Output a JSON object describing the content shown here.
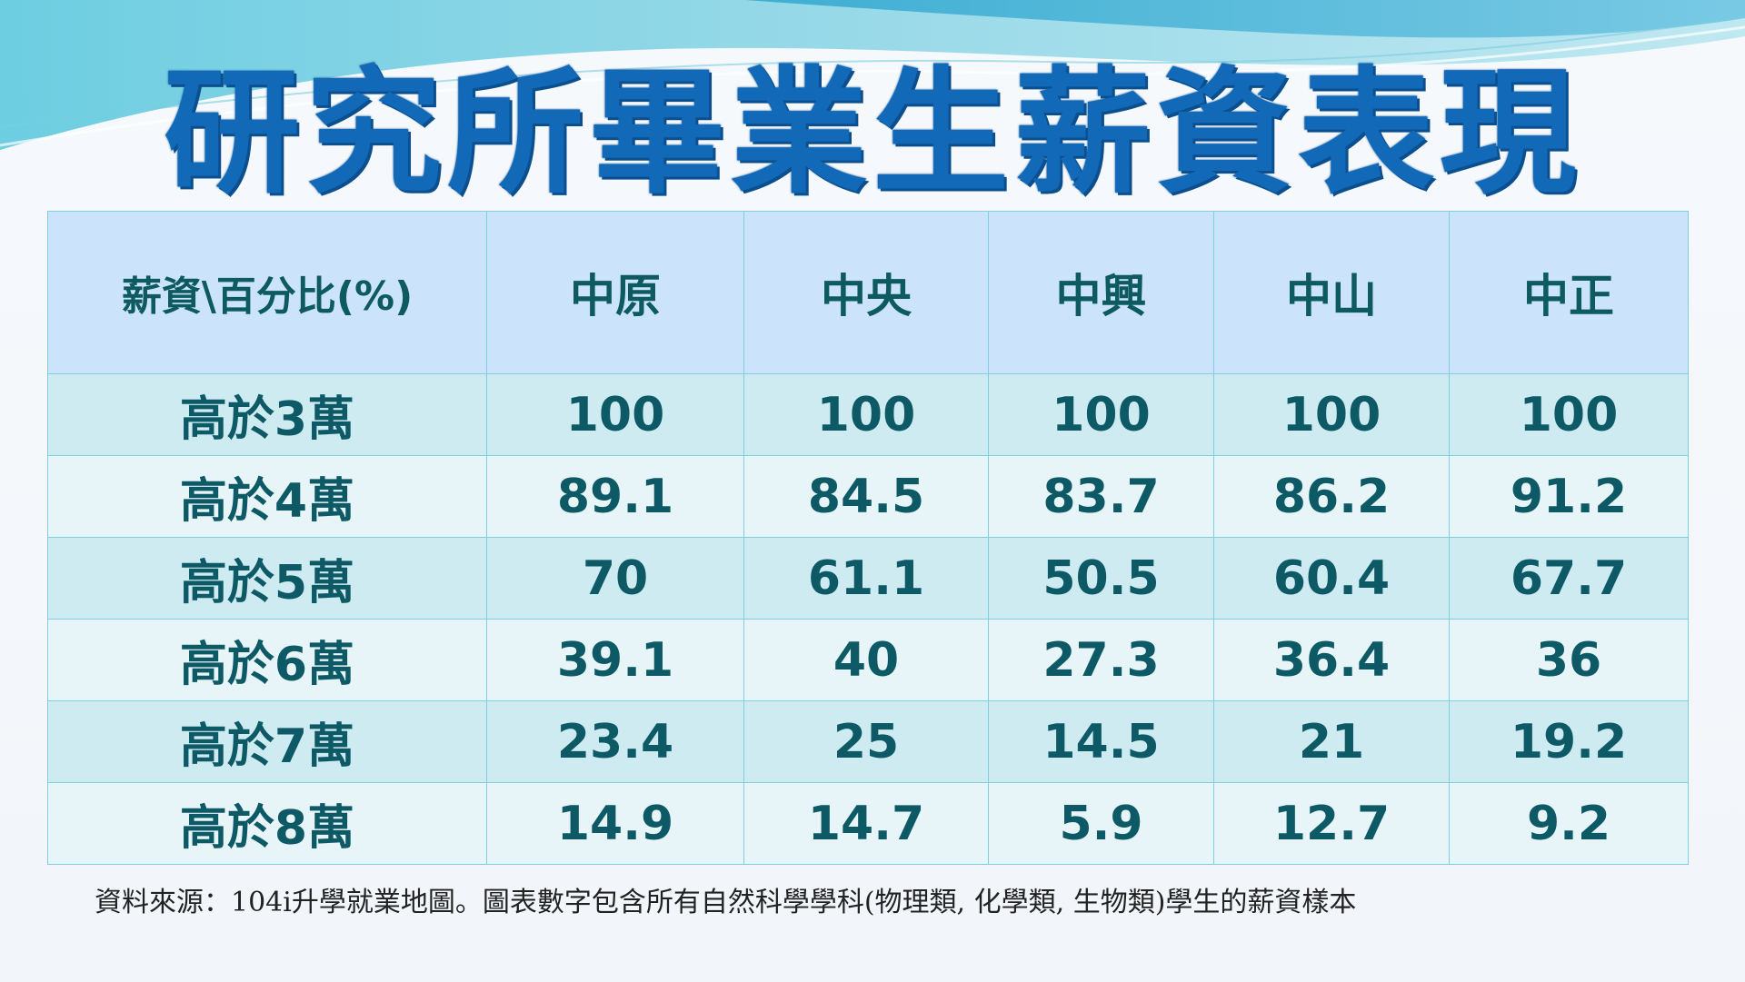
{
  "title": "研究所畢業生薪資表現",
  "table": {
    "corner_header": "薪資\\百分比(%)",
    "columns": [
      "中原",
      "中央",
      "中興",
      "中山",
      "中正"
    ],
    "rows": [
      {
        "label": "高於3萬",
        "values": [
          "100",
          "100",
          "100",
          "100",
          "100"
        ]
      },
      {
        "label": "高於4萬",
        "values": [
          "89.1",
          "84.5",
          "83.7",
          "86.2",
          "91.2"
        ]
      },
      {
        "label": "高於5萬",
        "values": [
          "70",
          "61.1",
          "50.5",
          "60.4",
          "67.7"
        ]
      },
      {
        "label": "高於6萬",
        "values": [
          "39.1",
          "40",
          "27.3",
          "36.4",
          "36"
        ]
      },
      {
        "label": "高於7萬",
        "values": [
          "23.4",
          "25",
          "14.5",
          "21",
          "19.2"
        ]
      },
      {
        "label": "高於8萬",
        "values": [
          "14.9",
          "14.7",
          "5.9",
          "12.7",
          "9.2"
        ]
      }
    ]
  },
  "source_note": "資料來源：104i升學就業地圖。圖表數字包含所有自然科學學科(物理類, 化學類, 生物類)學生的薪資樣本",
  "colors": {
    "title": "#1169b8",
    "header_bg": "#cce4fb",
    "row_odd_bg": "#cdebf1",
    "row_even_bg": "#e7f5f8",
    "cell_text": "#0d5a66",
    "border": "#7fcfe0"
  }
}
